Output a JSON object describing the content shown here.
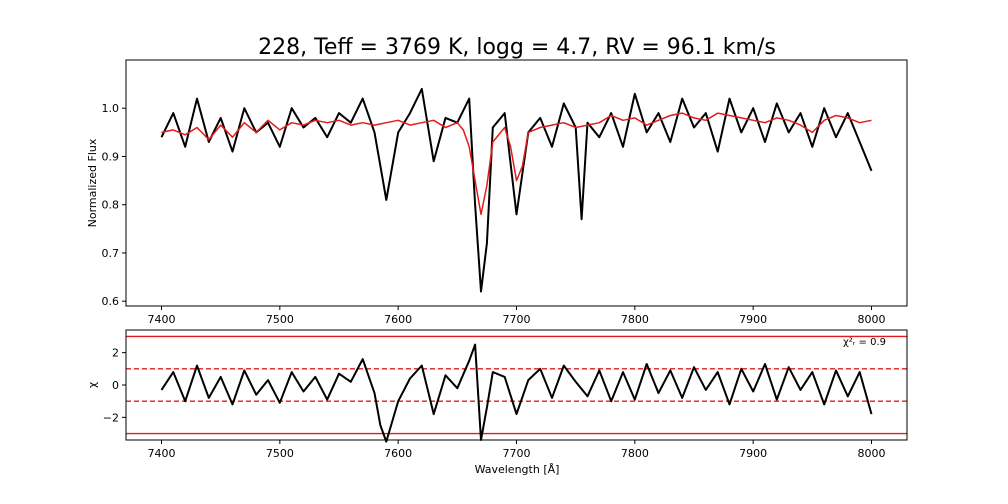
{
  "chart_data": [
    {
      "type": "line",
      "title": "228, Teff = 3769 K, logg = 4.7, RV = 96.1 km/s",
      "xlabel": "",
      "ylabel": "Normalized Flux",
      "xlim": [
        7370,
        8030
      ],
      "ylim": [
        0.59,
        1.1
      ],
      "xticks": [
        7400,
        7500,
        7600,
        7700,
        7800,
        7900,
        8000
      ],
      "yticks": [
        0.6,
        0.7,
        0.8,
        0.9,
        1.0
      ],
      "grid": false,
      "series": [
        {
          "name": "",
          "color": "#000000",
          "x": [
            7400,
            7410,
            7420,
            7430,
            7440,
            7450,
            7460,
            7470,
            7480,
            7490,
            7500,
            7510,
            7520,
            7530,
            7540,
            7550,
            7560,
            7570,
            7580,
            7585,
            7590,
            7600,
            7610,
            7620,
            7630,
            7640,
            7650,
            7660,
            7665,
            7670,
            7675,
            7680,
            7690,
            7700,
            7710,
            7720,
            7730,
            7740,
            7750,
            7755,
            7760,
            7770,
            7780,
            7790,
            7800,
            7810,
            7820,
            7830,
            7840,
            7850,
            7860,
            7870,
            7880,
            7890,
            7900,
            7910,
            7920,
            7930,
            7940,
            7950,
            7960,
            7970,
            7980,
            7990,
            8000
          ],
          "values": [
            0.94,
            0.99,
            0.92,
            1.02,
            0.93,
            0.98,
            0.91,
            1.0,
            0.95,
            0.97,
            0.92,
            1.0,
            0.96,
            0.98,
            0.94,
            0.99,
            0.97,
            1.02,
            0.95,
            0.88,
            0.81,
            0.95,
            0.99,
            1.04,
            0.89,
            0.98,
            0.97,
            1.02,
            0.8,
            0.62,
            0.72,
            0.96,
            0.99,
            0.78,
            0.95,
            0.98,
            0.92,
            1.01,
            0.96,
            0.77,
            0.97,
            0.94,
            0.99,
            0.92,
            1.03,
            0.95,
            0.99,
            0.93,
            1.02,
            0.96,
            0.99,
            0.91,
            1.02,
            0.95,
            1.0,
            0.93,
            1.01,
            0.95,
            0.99,
            0.92,
            1.0,
            0.94,
            0.99,
            0.93,
            0.87
          ]
        },
        {
          "name": "",
          "color": "#e41a1c",
          "x": [
            7400,
            7410,
            7420,
            7430,
            7440,
            7450,
            7460,
            7470,
            7480,
            7490,
            7500,
            7510,
            7520,
            7530,
            7540,
            7550,
            7560,
            7570,
            7580,
            7590,
            7600,
            7610,
            7620,
            7630,
            7640,
            7650,
            7655,
            7660,
            7665,
            7670,
            7675,
            7680,
            7690,
            7695,
            7700,
            7705,
            7710,
            7720,
            7730,
            7740,
            7750,
            7760,
            7770,
            7780,
            7790,
            7800,
            7810,
            7820,
            7830,
            7840,
            7850,
            7860,
            7870,
            7880,
            7890,
            7900,
            7910,
            7920,
            7930,
            7940,
            7950,
            7960,
            7970,
            7980,
            7990,
            8000
          ],
          "values": [
            0.95,
            0.955,
            0.945,
            0.96,
            0.935,
            0.965,
            0.94,
            0.97,
            0.95,
            0.975,
            0.955,
            0.97,
            0.965,
            0.975,
            0.97,
            0.975,
            0.965,
            0.97,
            0.965,
            0.97,
            0.975,
            0.965,
            0.97,
            0.975,
            0.96,
            0.97,
            0.955,
            0.92,
            0.85,
            0.78,
            0.84,
            0.93,
            0.96,
            0.92,
            0.85,
            0.88,
            0.95,
            0.96,
            0.965,
            0.97,
            0.96,
            0.965,
            0.97,
            0.985,
            0.975,
            0.98,
            0.965,
            0.975,
            0.985,
            0.99,
            0.98,
            0.975,
            0.99,
            0.985,
            0.98,
            0.975,
            0.97,
            0.98,
            0.975,
            0.965,
            0.95,
            0.975,
            0.985,
            0.98,
            0.97,
            0.975
          ]
        }
      ]
    },
    {
      "type": "line",
      "title": "",
      "xlabel": "Wavelength [Å]",
      "ylabel": "χ",
      "xlim": [
        7370,
        8030
      ],
      "ylim": [
        -3.4,
        3.4
      ],
      "xticks": [
        7400,
        7500,
        7600,
        7700,
        7800,
        7900,
        8000
      ],
      "yticks": [
        -2,
        0,
        2
      ],
      "grid": false,
      "annotation": "χ²ᵣ = 0.9",
      "hlines": [
        {
          "y": 3,
          "color": "#e41a1c",
          "style": "solid"
        },
        {
          "y": 1,
          "color": "#e41a1c",
          "style": "dashed"
        },
        {
          "y": -1,
          "color": "#e41a1c",
          "style": "dashed"
        },
        {
          "y": -3,
          "color": "#e41a1c",
          "style": "solid"
        }
      ],
      "series": [
        {
          "name": "",
          "color": "#000000",
          "x": [
            7400,
            7410,
            7420,
            7430,
            7440,
            7450,
            7460,
            7470,
            7480,
            7490,
            7500,
            7510,
            7520,
            7530,
            7540,
            7550,
            7560,
            7570,
            7580,
            7585,
            7590,
            7600,
            7610,
            7620,
            7630,
            7640,
            7650,
            7660,
            7665,
            7670,
            7675,
            7680,
            7690,
            7700,
            7710,
            7720,
            7730,
            7740,
            7750,
            7760,
            7770,
            7780,
            7790,
            7800,
            7810,
            7820,
            7830,
            7840,
            7850,
            7860,
            7870,
            7880,
            7890,
            7900,
            7910,
            7920,
            7930,
            7940,
            7950,
            7960,
            7970,
            7980,
            7990,
            8000
          ],
          "values": [
            -0.3,
            0.8,
            -1.0,
            1.2,
            -0.8,
            0.5,
            -1.2,
            0.9,
            -0.6,
            0.3,
            -1.1,
            0.8,
            -0.4,
            0.5,
            -0.9,
            0.7,
            0.2,
            1.6,
            -0.5,
            -2.5,
            -3.5,
            -1.0,
            0.4,
            1.2,
            -1.8,
            0.6,
            -0.2,
            1.5,
            2.5,
            -3.4,
            -1.4,
            0.8,
            0.5,
            -1.8,
            0.3,
            1.0,
            -0.8,
            1.2,
            0.2,
            -0.7,
            0.9,
            -1.0,
            0.8,
            -0.9,
            1.3,
            -0.5,
            0.9,
            -0.8,
            1.1,
            -0.3,
            0.8,
            -1.2,
            1.0,
            -0.4,
            1.3,
            -0.9,
            1.1,
            -0.3,
            0.8,
            -1.2,
            0.9,
            -0.7,
            0.8,
            -1.8
          ]
        }
      ]
    }
  ]
}
